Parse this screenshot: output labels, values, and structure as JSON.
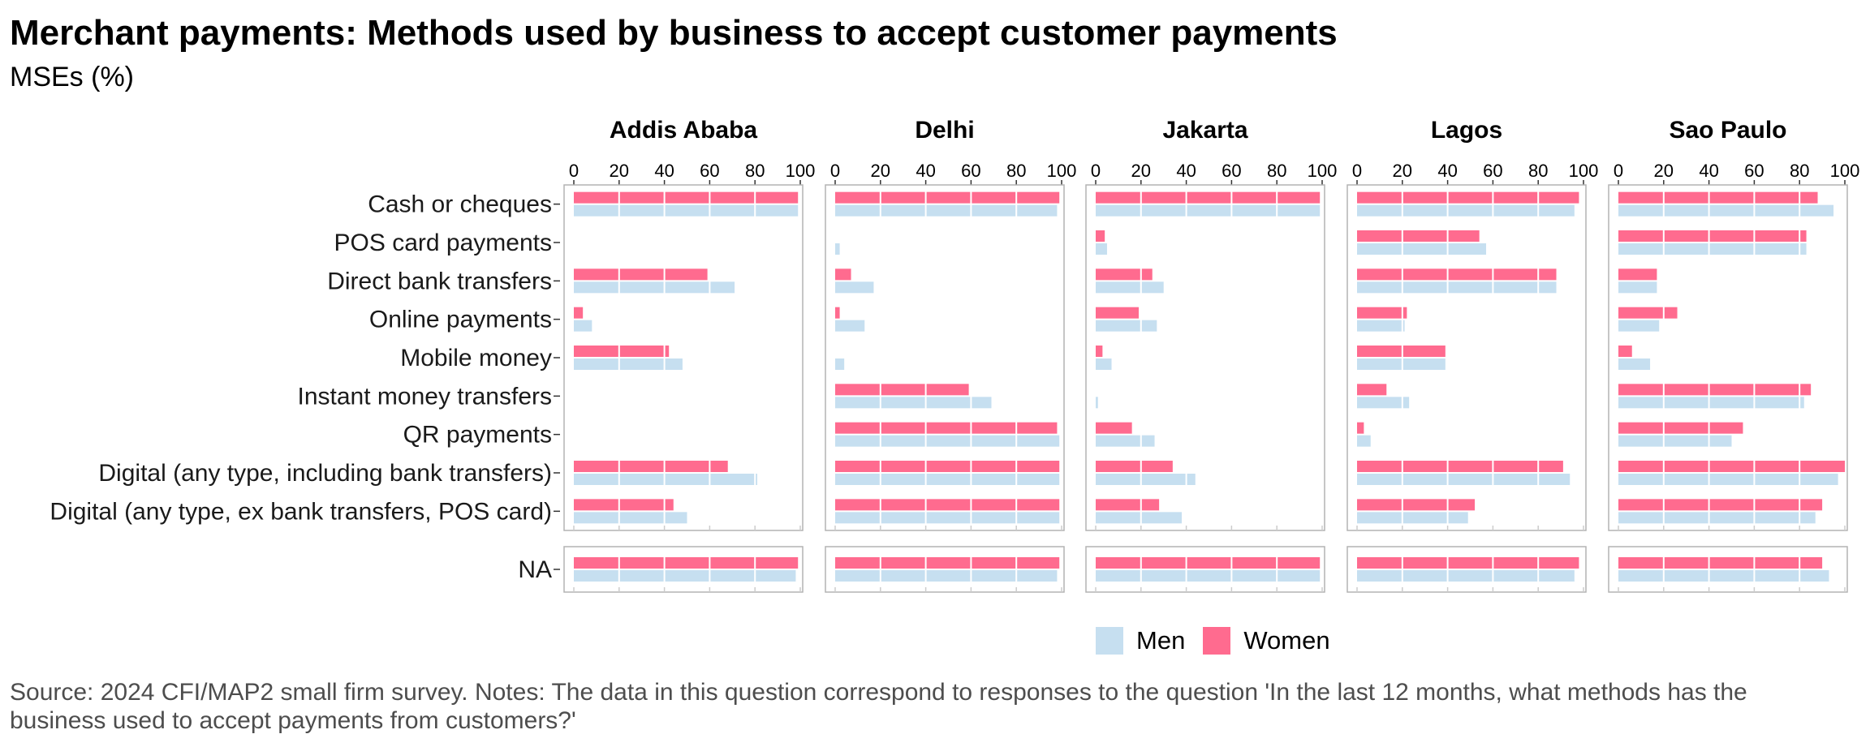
{
  "title": "Merchant payments: Methods used by business to accept customer payments",
  "subtitle": "MSEs (%)",
  "caption": "Source: 2024 CFI/MAP2 small firm survey. Notes: The data in this question correspond to responses to the question 'In the last 12 months, what methods has the business used to accept payments from customers?'",
  "colors": {
    "Men": "#c6dff0",
    "Women": "#ff6b8f",
    "panel_border": "#b3b3b3",
    "grid": "#e6e6e6"
  },
  "legend": [
    {
      "label": "Men",
      "color": "#c6dff0"
    },
    {
      "label": "Women",
      "color": "#ff6b8f"
    }
  ],
  "chart_data": {
    "type": "bar",
    "orientation": "horizontal",
    "facets": [
      "Addis Ababa",
      "Delhi",
      "Jakarta",
      "Lagos",
      "Sao Paulo"
    ],
    "categories": [
      "Cash or cheques",
      "POS card payments",
      "Direct bank transfers",
      "Online payments",
      "Mobile money",
      "Instant money transfers",
      "QR payments",
      "Digital (any type, including bank transfers)",
      "Digital (any type, ex bank transfers, POS card)"
    ],
    "na_row": "NA",
    "xlim": [
      0,
      100
    ],
    "xticks": [
      0,
      20,
      40,
      60,
      80,
      100
    ],
    "legend_position": "bottom-right",
    "series_names": [
      "Women",
      "Men"
    ],
    "values": {
      "Addis Ababa": {
        "Women": [
          99,
          null,
          59,
          4,
          42,
          null,
          null,
          68,
          44
        ],
        "Men": [
          99,
          null,
          71,
          8,
          48,
          null,
          null,
          81,
          50
        ],
        "NA_Women": 99,
        "NA_Men": 98
      },
      "Delhi": {
        "Women": [
          99,
          null,
          7,
          2,
          null,
          59,
          98,
          99,
          99
        ],
        "Men": [
          98,
          2,
          17,
          13,
          4,
          69,
          99,
          99,
          99
        ],
        "NA_Women": 99,
        "NA_Men": 98
      },
      "Jakarta": {
        "Women": [
          99,
          4,
          25,
          19,
          3,
          null,
          16,
          34,
          28
        ],
        "Men": [
          99,
          5,
          30,
          27,
          7,
          1,
          26,
          44,
          38
        ],
        "NA_Women": 99,
        "NA_Men": 99
      },
      "Lagos": {
        "Women": [
          98,
          54,
          88,
          22,
          39,
          13,
          3,
          91,
          52
        ],
        "Men": [
          96,
          57,
          88,
          21,
          39,
          23,
          6,
          94,
          49
        ],
        "NA_Women": 98,
        "NA_Men": 96
      },
      "Sao Paulo": {
        "Women": [
          88,
          83,
          17,
          26,
          6,
          85,
          55,
          100,
          90
        ],
        "Men": [
          95,
          83,
          17,
          18,
          14,
          82,
          50,
          97,
          87
        ],
        "NA_Women": 90,
        "NA_Men": 93
      }
    }
  }
}
